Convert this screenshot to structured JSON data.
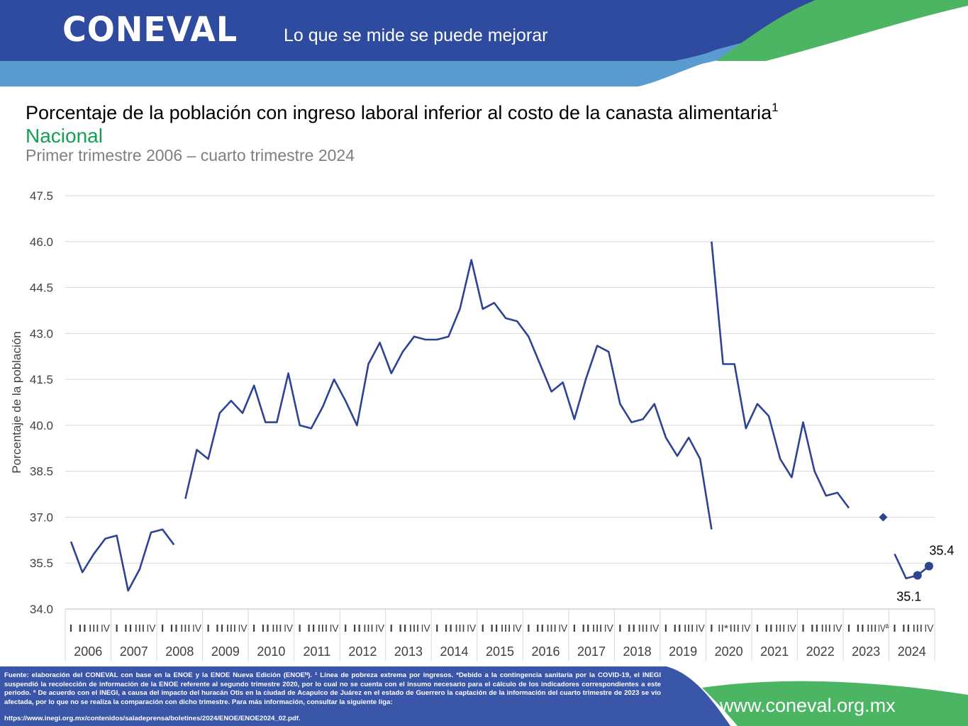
{
  "header": {
    "logo": "CONEVAL",
    "slogan": "Lo que se mide se puede mejorar",
    "colors": {
      "navy": "#2e4b9f",
      "light_blue": "#5a9bd0",
      "green": "#4cb564"
    }
  },
  "title": {
    "main": "Porcentaje de la población con ingreso laboral inferior al costo de la canasta alimentaria",
    "superscript": "1",
    "subtitle": "Nacional",
    "period": "Primer trimestre 2006 – cuarto trimestre 2024"
  },
  "chart_data": {
    "type": "line",
    "ylabel": "Porcentaje de la población",
    "ylim": [
      34.0,
      47.5
    ],
    "yticks": [
      "34.0",
      "35.5",
      "37.0",
      "38.5",
      "40.0",
      "41.5",
      "43.0",
      "44.5",
      "46.0",
      "47.5"
    ],
    "grid": true,
    "line_color": "#2e4393",
    "years": [
      "2006",
      "2007",
      "2008",
      "2009",
      "2010",
      "2011",
      "2012",
      "2013",
      "2014",
      "2015",
      "2016",
      "2017",
      "2018",
      "2019",
      "2020",
      "2021",
      "2022",
      "2023",
      "2024"
    ],
    "quarter_labels": [
      [
        "I",
        "II",
        "III",
        "IV"
      ],
      [
        "I",
        "II",
        "III",
        "IV"
      ],
      [
        "I",
        "II",
        "III",
        "IV"
      ],
      [
        "I",
        "II",
        "III",
        "IV"
      ],
      [
        "I",
        "II",
        "III",
        "IV"
      ],
      [
        "I",
        "II",
        "III",
        "IV"
      ],
      [
        "I",
        "II",
        "III",
        "IV"
      ],
      [
        "I",
        "II",
        "III",
        "IV"
      ],
      [
        "I",
        "II",
        "III",
        "IV"
      ],
      [
        "I",
        "II",
        "III",
        "IV"
      ],
      [
        "I",
        "II",
        "III",
        "IV"
      ],
      [
        "I",
        "II",
        "III",
        "IV"
      ],
      [
        "I",
        "II",
        "III",
        "IV"
      ],
      [
        "I",
        "II",
        "III",
        "IV"
      ],
      [
        "I",
        "II*",
        "III",
        "IV"
      ],
      [
        "I",
        "II",
        "III",
        "IV"
      ],
      [
        "I",
        "II",
        "III",
        "IV"
      ],
      [
        "I",
        "II",
        "III",
        "IVª"
      ],
      [
        "I",
        "II",
        "III",
        "IV"
      ]
    ],
    "series": [
      {
        "values": [
          36.2,
          35.2,
          35.8,
          36.3,
          36.4,
          34.6,
          35.3,
          36.5,
          36.6,
          36.1
        ]
      },
      {
        "values": [
          37.6,
          39.2,
          38.9,
          40.4,
          40.8,
          40.4,
          41.3,
          40.1,
          40.1,
          41.7,
          40.0,
          39.9,
          40.6,
          41.5,
          40.8,
          40.0,
          42.0,
          42.7,
          41.7,
          42.4,
          42.9,
          42.8,
          42.8,
          42.9,
          43.8,
          45.4,
          43.8,
          44.0,
          43.5,
          43.4,
          42.9,
          42.0,
          41.1,
          41.4,
          40.2,
          41.5,
          42.6,
          42.4,
          40.7,
          40.1,
          40.2,
          40.7,
          39.6,
          39.0,
          39.6,
          38.9,
          36.6
        ]
      },
      {
        "values": [
          46.0,
          42.0,
          42.0,
          39.9,
          40.7,
          40.3,
          38.9,
          38.3,
          40.1,
          38.5,
          37.7,
          37.8,
          37.3
        ]
      },
      {
        "values": [
          37.0
        ]
      },
      {
        "values": [
          35.8,
          35.0,
          35.1,
          35.4
        ]
      }
    ],
    "data_labels": [
      "35.1",
      "35.4"
    ]
  },
  "footer": {
    "note": "Fuente: elaboración del CONEVAL con base en la ENOE y la ENOE Nueva Edición (ENOEᴺ). ¹ Línea de pobreza extrema por ingresos. *Debido a la contingencia sanitaria por la COVID-19, el INEGI suspendió la recolección de información de la ENOE referente al segundo trimestre 2020, por lo cual no se cuenta con el insumo necesario para el cálculo de los indicadores correspondientes a este periodo. ª De acuerdo con el INEGI, a causa del impacto del huracán Otis en la ciudad de Acapulco de Juárez en el estado de Guerrero la captación de la información del cuarto trimestre de 2023 se vio afectada, por lo que no se realiza la comparación con dicho trimestre. Para más información, consultar la siguiente liga:",
    "url": "https://www.inegi.org.mx/contenidos/saladeprensa/boletines/2024/ENOE/ENOE2024_02.pdf.",
    "site": "www.coneval.org.mx"
  }
}
